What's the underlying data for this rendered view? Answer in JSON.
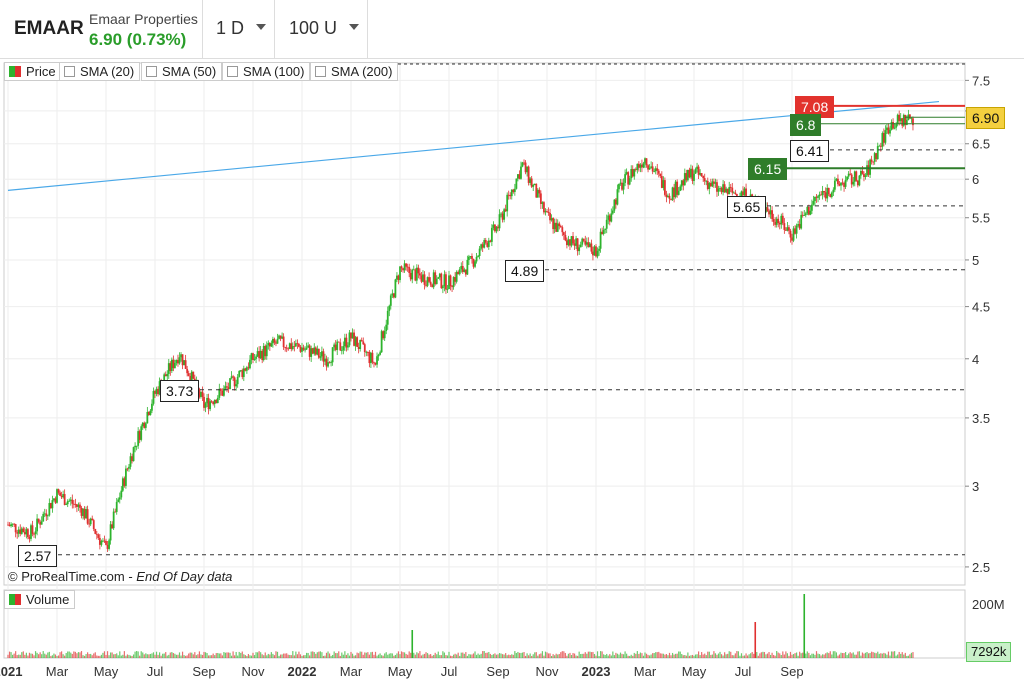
{
  "header": {
    "ticker": "EMAAR",
    "company": "Emaar Properties",
    "quote": "6.90 (0.73%)",
    "timeframe": "1 D",
    "units": "100 U"
  },
  "legend": [
    {
      "label": "Price",
      "kind": "price"
    },
    {
      "label": "SMA (20)",
      "kind": "check"
    },
    {
      "label": "SMA (50)",
      "kind": "check"
    },
    {
      "label": "SMA (100)",
      "kind": "check"
    },
    {
      "label": "SMA (200)",
      "kind": "check"
    }
  ],
  "volume_legend": "Volume",
  "copyright": {
    "brand": "© ProRealTime.com - ",
    "note": "End Of Day data"
  },
  "colors": {
    "up": "#2db32d",
    "down": "#e03030",
    "trendline": "#4aa8e8",
    "resistance": "#e2322d",
    "support": "#2f7d2a",
    "last": "#f4d03f"
  },
  "chart_data": {
    "type": "candlestick",
    "y_scale": "log",
    "ylim": [
      2.4,
      7.8
    ],
    "y_ticks": [
      2.5,
      3,
      3.5,
      4,
      4.5,
      5,
      5.5,
      6,
      6.5,
      7,
      7.5
    ],
    "y_tick_labels": [
      "2.5",
      "3",
      "3.5",
      "4",
      "4.5",
      "5",
      "5.5",
      "6",
      "6.5",
      "",
      "7.5"
    ],
    "x_tick_labels": [
      "Jul",
      "Sep",
      "Nov",
      "2021",
      "Mar",
      "May",
      "Jul",
      "Sep",
      "Nov",
      "2022",
      "Mar",
      "May",
      "Jul",
      "Sep",
      "Nov",
      "2023",
      "Mar",
      "May",
      "Jul",
      "Sep"
    ],
    "x_range": [
      "2020-07",
      "2023-09"
    ],
    "price_path": [
      {
        "date": "2020-07",
        "close": 2.75
      },
      {
        "date": "2020-08",
        "close": 2.7
      },
      {
        "date": "2020-09",
        "close": 2.95
      },
      {
        "date": "2020-10",
        "close": 2.85
      },
      {
        "date": "2020-11",
        "close": 2.6
      },
      {
        "date": "2020-12",
        "close": 3.2
      },
      {
        "date": "2021-01",
        "close": 3.7
      },
      {
        "date": "2021-02",
        "close": 4.05
      },
      {
        "date": "2021-03",
        "close": 3.6
      },
      {
        "date": "2021-04",
        "close": 3.75
      },
      {
        "date": "2021-05",
        "close": 4.0
      },
      {
        "date": "2021-06",
        "close": 4.15
      },
      {
        "date": "2021-07",
        "close": 4.1
      },
      {
        "date": "2021-08",
        "close": 4.0
      },
      {
        "date": "2021-09",
        "close": 4.2
      },
      {
        "date": "2021-10",
        "close": 3.95
      },
      {
        "date": "2021-11",
        "close": 4.9
      },
      {
        "date": "2021-12",
        "close": 4.8
      },
      {
        "date": "2022-01",
        "close": 4.75
      },
      {
        "date": "2022-02",
        "close": 5.0
      },
      {
        "date": "2022-03",
        "close": 5.4
      },
      {
        "date": "2022-04",
        "close": 6.2
      },
      {
        "date": "2022-05",
        "close": 5.5
      },
      {
        "date": "2022-06",
        "close": 5.2
      },
      {
        "date": "2022-07",
        "close": 5.1
      },
      {
        "date": "2022-08",
        "close": 5.9
      },
      {
        "date": "2022-09",
        "close": 6.3
      },
      {
        "date": "2022-10",
        "close": 5.8
      },
      {
        "date": "2022-11",
        "close": 6.1
      },
      {
        "date": "2022-12",
        "close": 5.85
      },
      {
        "date": "2023-01",
        "close": 5.8
      },
      {
        "date": "2023-02",
        "close": 5.6
      },
      {
        "date": "2023-03",
        "close": 5.3
      },
      {
        "date": "2023-04",
        "close": 5.75
      },
      {
        "date": "2023-05",
        "close": 5.95
      },
      {
        "date": "2023-06",
        "close": 6.05
      },
      {
        "date": "2023-07",
        "close": 6.8
      },
      {
        "date": "2023-08",
        "close": 6.9
      }
    ],
    "levels": [
      {
        "value": 7.08,
        "label": "7.08",
        "style": "resistance"
      },
      {
        "value": 6.8,
        "label": "6.8",
        "style": "support"
      },
      {
        "value": 6.41,
        "label": "6.41",
        "style": "dashed"
      },
      {
        "value": 6.15,
        "label": "6.15",
        "style": "support"
      },
      {
        "value": 5.65,
        "label": "5.65",
        "style": "dashed"
      },
      {
        "value": 4.89,
        "label": "4.89",
        "style": "dashed"
      },
      {
        "value": 3.73,
        "label": "3.73",
        "style": "dashed"
      },
      {
        "value": 2.57,
        "label": "2.57",
        "style": "dashed"
      }
    ],
    "last_price": {
      "value": 6.9,
      "label": "6.90"
    },
    "trendline": {
      "start": {
        "date": "2020-07",
        "value": 5.85
      },
      "end": {
        "date": "2023-09",
        "value": 7.15
      }
    },
    "volume": {
      "max_label": "200M",
      "last_label": "7292k",
      "spike_dates": [
        "2021-11",
        "2023-01",
        "2023-03"
      ]
    }
  }
}
